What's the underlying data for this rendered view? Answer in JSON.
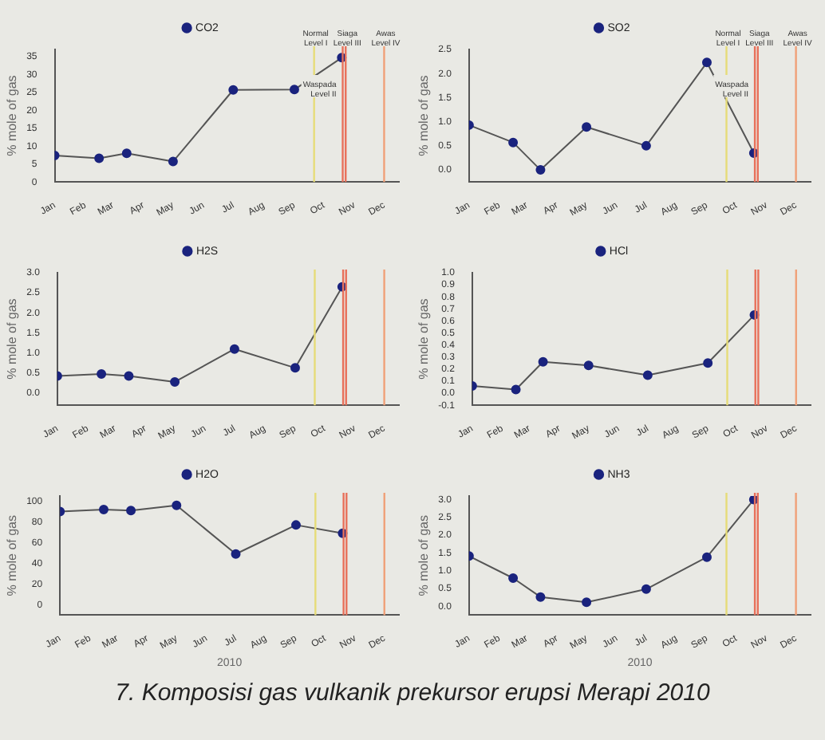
{
  "chart_data": [
    {
      "type": "line",
      "ylabel": "% mole of gas",
      "legend": "top",
      "marker": "circle",
      "grid": false,
      "x": [
        "2010-01-01",
        "2010-02-15",
        "2010-03-15",
        "2010-05-01",
        "2010-07-01",
        "2010-09-01",
        "2010-10-19"
      ],
      "series": [
        {
          "name": "CO2",
          "color": "#1a237e",
          "values": [
            7.4,
            6.6,
            8,
            5.7,
            25.7,
            25.8,
            34.7
          ]
        }
      ],
      "xlim": [
        "2010-01-01",
        "2010-12-16"
      ],
      "xticks": [
        {
          "value": "2010-01",
          "label": "Jan"
        },
        {
          "value": "2010-02",
          "label": "Feb"
        },
        {
          "value": "2010-03",
          "label": "Mar"
        },
        {
          "value": "2010-04",
          "label": "Apr"
        },
        {
          "value": "2010-05",
          "label": "May"
        },
        {
          "value": "2010-06",
          "label": "Jun"
        },
        {
          "value": "2010-07",
          "label": "Jul"
        },
        {
          "value": "2010-08",
          "label": "Aug"
        },
        {
          "value": "2010-09",
          "label": "Sep"
        },
        {
          "value": "2010-10",
          "label": "Oct"
        },
        {
          "value": "2010-11",
          "label": "Nov"
        },
        {
          "value": "2010-12",
          "label": "Dec"
        }
      ],
      "ylim": [
        0,
        37
      ],
      "yticks": [
        0,
        5,
        10,
        15,
        20,
        25,
        30,
        35
      ],
      "ref_lines": [
        {
          "axis": "x",
          "value": "2010-09-21",
          "label": "Normal Level I",
          "color": "#e6dc78"
        },
        {
          "axis": "x",
          "value": "2010-10-20",
          "label": "Waspada Level II",
          "color": "#e8705a"
        },
        {
          "axis": "x",
          "value": "2010-10-23",
          "label": "Siaga Level III",
          "color": "#e8705a"
        },
        {
          "axis": "x",
          "value": "2010-12-01",
          "label": "Awas Level IV",
          "color": "#f0a078"
        }
      ]
    },
    {
      "type": "line",
      "ylabel": "% mole of gas",
      "legend": "top",
      "marker": "circle",
      "grid": false,
      "x": [
        "2010-01-01",
        "2010-02-15",
        "2010-03-15",
        "2010-05-01",
        "2010-07-01",
        "2010-09-01",
        "2010-10-19"
      ],
      "series": [
        {
          "name": "SO2",
          "color": "#1a237e",
          "values": [
            0.93,
            0.57,
            0.0,
            0.89,
            0.5,
            2.23,
            0.35
          ]
        }
      ],
      "xlim": [
        "2010-01-01",
        "2010-12-16"
      ],
      "xticks": [
        {
          "value": "2010-01",
          "label": "Jan"
        },
        {
          "value": "2010-02",
          "label": "Feb"
        },
        {
          "value": "2010-03",
          "label": "Mar"
        },
        {
          "value": "2010-04",
          "label": "Apr"
        },
        {
          "value": "2010-05",
          "label": "May"
        },
        {
          "value": "2010-06",
          "label": "Jun"
        },
        {
          "value": "2010-07",
          "label": "Jul"
        },
        {
          "value": "2010-08",
          "label": "Aug"
        },
        {
          "value": "2010-09",
          "label": "Sep"
        },
        {
          "value": "2010-10",
          "label": "Oct"
        },
        {
          "value": "2010-11",
          "label": "Nov"
        },
        {
          "value": "2010-12",
          "label": "Dec"
        }
      ],
      "ylim": [
        -0.25,
        2.5
      ],
      "yticks": [
        {
          "value": 0,
          "label": "0.0"
        },
        0.5,
        {
          "value": 1,
          "label": "1.0"
        },
        1.5,
        {
          "value": 2,
          "label": "2.0"
        },
        2.5
      ],
      "ref_lines": [
        {
          "axis": "x",
          "value": "2010-09-21",
          "label": "Normal Level I",
          "color": "#e6dc78"
        },
        {
          "axis": "x",
          "value": "2010-10-20",
          "label": "Waspada Level II",
          "color": "#e8705a"
        },
        {
          "axis": "x",
          "value": "2010-10-23",
          "label": "Siaga Level III",
          "color": "#e8705a"
        },
        {
          "axis": "x",
          "value": "2010-12-01",
          "label": "Awas Level IV",
          "color": "#f0a078"
        }
      ]
    },
    {
      "type": "line",
      "ylabel": "% mole of gas",
      "legend": "top",
      "marker": "circle",
      "grid": false,
      "x": [
        "2010-01-01",
        "2010-02-15",
        "2010-03-15",
        "2010-05-01",
        "2010-07-01",
        "2010-09-01",
        "2010-10-19"
      ],
      "series": [
        {
          "name": "H2S",
          "color": "#1a237e",
          "values": [
            0.43,
            0.48,
            0.43,
            0.28,
            1.1,
            0.63,
            2.65
          ]
        }
      ],
      "xlim": [
        "2010-01-01",
        "2010-12-16"
      ],
      "xticks": [
        {
          "value": "2010-01",
          "label": "Jan"
        },
        {
          "value": "2010-02",
          "label": "Feb"
        },
        {
          "value": "2010-03",
          "label": "Mar"
        },
        {
          "value": "2010-04",
          "label": "Apr"
        },
        {
          "value": "2010-05",
          "label": "May"
        },
        {
          "value": "2010-06",
          "label": "Jun"
        },
        {
          "value": "2010-07",
          "label": "Jul"
        },
        {
          "value": "2010-08",
          "label": "Aug"
        },
        {
          "value": "2010-09",
          "label": "Sep"
        },
        {
          "value": "2010-10",
          "label": "Oct"
        },
        {
          "value": "2010-11",
          "label": "Nov"
        },
        {
          "value": "2010-12",
          "label": "Dec"
        }
      ],
      "ylim": [
        -0.3,
        3.0
      ],
      "yticks": [
        {
          "value": 0,
          "label": "0.0"
        },
        0.5,
        {
          "value": 1,
          "label": "1.0"
        },
        1.5,
        {
          "value": 2,
          "label": "2.0"
        },
        2.5,
        {
          "value": 3,
          "label": "3.0"
        }
      ],
      "ref_lines": [
        {
          "axis": "x",
          "value": "2010-09-21",
          "color": "#e6dc78"
        },
        {
          "axis": "x",
          "value": "2010-10-20",
          "color": "#e8705a"
        },
        {
          "axis": "x",
          "value": "2010-10-23",
          "color": "#e8705a"
        },
        {
          "axis": "x",
          "value": "2010-12-01",
          "color": "#f0a078"
        }
      ]
    },
    {
      "type": "line",
      "ylabel": "% mole of gas",
      "legend": "top",
      "marker": "circle",
      "grid": false,
      "x": [
        "2010-01-01",
        "2010-02-15",
        "2010-03-15",
        "2010-05-01",
        "2010-07-01",
        "2010-09-01",
        "2010-10-19"
      ],
      "series": [
        {
          "name": "HCl",
          "color": "#1a237e",
          "values": [
            0.06,
            0.03,
            0.26,
            0.23,
            0.15,
            0.25,
            0.65
          ]
        }
      ],
      "xlim": [
        "2010-01-01",
        "2010-12-16"
      ],
      "xticks": [
        {
          "value": "2010-01",
          "label": "Jan"
        },
        {
          "value": "2010-02",
          "label": "Feb"
        },
        {
          "value": "2010-03",
          "label": "Mar"
        },
        {
          "value": "2010-04",
          "label": "Apr"
        },
        {
          "value": "2010-05",
          "label": "May"
        },
        {
          "value": "2010-06",
          "label": "Jun"
        },
        {
          "value": "2010-07",
          "label": "Jul"
        },
        {
          "value": "2010-08",
          "label": "Aug"
        },
        {
          "value": "2010-09",
          "label": "Sep"
        },
        {
          "value": "2010-10",
          "label": "Oct"
        },
        {
          "value": "2010-11",
          "label": "Nov"
        },
        {
          "value": "2010-12",
          "label": "Dec"
        }
      ],
      "ylim": [
        -0.1,
        1.0
      ],
      "yticks": [
        -0.1,
        {
          "value": 0,
          "label": "0.0"
        },
        0.1,
        0.2,
        0.3,
        0.4,
        0.5,
        0.6,
        0.7,
        0.8,
        0.9,
        {
          "value": 1,
          "label": "1.0"
        }
      ],
      "ref_lines": [
        {
          "axis": "x",
          "value": "2010-09-21",
          "color": "#e6dc78"
        },
        {
          "axis": "x",
          "value": "2010-10-20",
          "color": "#e8705a"
        },
        {
          "axis": "x",
          "value": "2010-10-23",
          "color": "#e8705a"
        },
        {
          "axis": "x",
          "value": "2010-12-01",
          "color": "#f0a078"
        }
      ]
    },
    {
      "type": "line",
      "ylabel": "% mole of gas",
      "xlabel": "2010",
      "legend": "top",
      "marker": "circle",
      "grid": false,
      "x": [
        "2010-01-01",
        "2010-02-15",
        "2010-03-15",
        "2010-05-01",
        "2010-07-01",
        "2010-09-01",
        "2010-10-19"
      ],
      "series": [
        {
          "name": "H2O",
          "color": "#1a237e",
          "values": [
            90,
            92,
            91,
            96,
            49,
            77,
            69
          ]
        }
      ],
      "xlim": [
        "2010-01-01",
        "2010-12-16"
      ],
      "xticks": [
        {
          "value": "2010-01",
          "label": "Jan"
        },
        {
          "value": "2010-02",
          "label": "Feb"
        },
        {
          "value": "2010-03",
          "label": "Mar"
        },
        {
          "value": "2010-04",
          "label": "Apr"
        },
        {
          "value": "2010-05",
          "label": "May"
        },
        {
          "value": "2010-06",
          "label": "Jun"
        },
        {
          "value": "2010-07",
          "label": "Jul"
        },
        {
          "value": "2010-08",
          "label": "Aug"
        },
        {
          "value": "2010-09",
          "label": "Sep"
        },
        {
          "value": "2010-10",
          "label": "Oct"
        },
        {
          "value": "2010-11",
          "label": "Nov"
        },
        {
          "value": "2010-12",
          "label": "Dec"
        }
      ],
      "ylim": [
        -10,
        105
      ],
      "yticks": [
        0,
        20,
        40,
        60,
        80,
        100
      ],
      "ref_lines": [
        {
          "axis": "x",
          "value": "2010-09-21",
          "color": "#e6dc78"
        },
        {
          "axis": "x",
          "value": "2010-10-20",
          "color": "#e8705a"
        },
        {
          "axis": "x",
          "value": "2010-10-23",
          "color": "#e8705a"
        },
        {
          "axis": "x",
          "value": "2010-12-01",
          "color": "#f0a078"
        }
      ],
      "annotations": [
        "7. Komposisi gas vulkanik prekursor erupsi Merapi 2010"
      ]
    },
    {
      "type": "line",
      "ylabel": "% mole of gas",
      "xlabel": "2010",
      "legend": "top",
      "marker": "circle",
      "grid": false,
      "x": [
        "2010-01-01",
        "2010-02-15",
        "2010-03-15",
        "2010-05-01",
        "2010-07-01",
        "2010-09-01",
        "2010-10-19"
      ],
      "series": [
        {
          "name": "NH3",
          "color": "#1a237e",
          "values": [
            1.41,
            0.79,
            0.26,
            0.11,
            0.48,
            1.38,
            3.0
          ]
        }
      ],
      "xlim": [
        "2010-01-01",
        "2010-12-16"
      ],
      "xticks": [
        {
          "value": "2010-01",
          "label": "Jan"
        },
        {
          "value": "2010-02",
          "label": "Feb"
        },
        {
          "value": "2010-03",
          "label": "Mar"
        },
        {
          "value": "2010-04",
          "label": "Apr"
        },
        {
          "value": "2010-05",
          "label": "May"
        },
        {
          "value": "2010-06",
          "label": "Jun"
        },
        {
          "value": "2010-07",
          "label": "Jul"
        },
        {
          "value": "2010-08",
          "label": "Aug"
        },
        {
          "value": "2010-09",
          "label": "Sep"
        },
        {
          "value": "2010-10",
          "label": "Oct"
        },
        {
          "value": "2010-11",
          "label": "Nov"
        },
        {
          "value": "2010-12",
          "label": "Dec"
        }
      ],
      "ylim": [
        -0.25,
        3.1
      ],
      "yticks": [
        {
          "value": 0,
          "label": "0.0"
        },
        0.5,
        {
          "value": 1,
          "label": "1.0"
        },
        1.5,
        {
          "value": 2,
          "label": "2.0"
        },
        2.5,
        {
          "value": 3,
          "label": "3.0"
        }
      ],
      "ref_lines": [
        {
          "axis": "x",
          "value": "2010-09-21",
          "color": "#e6dc78"
        },
        {
          "axis": "x",
          "value": "2010-10-20",
          "color": "#e8705a"
        },
        {
          "axis": "x",
          "value": "2010-10-23",
          "color": "#e8705a"
        },
        {
          "axis": "x",
          "value": "2010-12-01",
          "color": "#f0a078"
        }
      ]
    }
  ]
}
